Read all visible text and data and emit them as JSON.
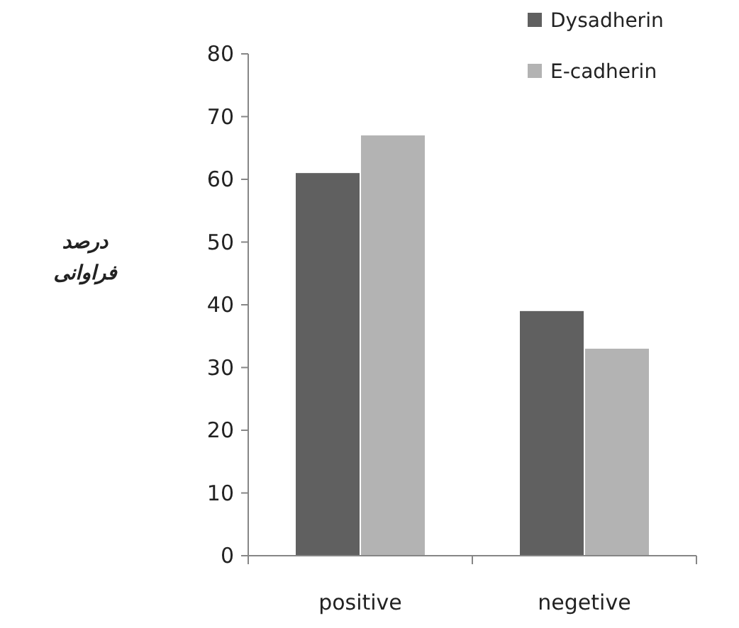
{
  "chart_data": {
    "type": "bar",
    "ylabel": "درصد فراوانی",
    "categories": [
      "positive",
      "negetive"
    ],
    "series": [
      {
        "name": "Dysadherin",
        "color": "#606060",
        "values": [
          61,
          39
        ]
      },
      {
        "name": "E-cadherin",
        "color": "#b3b3b3",
        "values": [
          67,
          33
        ]
      }
    ],
    "ylim": [
      0,
      80
    ],
    "yticks": [
      0,
      10,
      20,
      30,
      40,
      50,
      60,
      70,
      80
    ],
    "grid": false,
    "legend": "top right"
  }
}
